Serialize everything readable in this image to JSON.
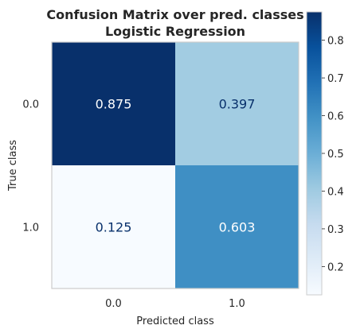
{
  "chart_data": {
    "type": "heatmap",
    "title": "Confusion Matrix over pred. classes",
    "subtitle": "Logistic Regression",
    "xlabel": "Predicted class",
    "ylabel": "True class",
    "x_categories": [
      "0.0",
      "1.0"
    ],
    "y_categories": [
      "0.0",
      "1.0"
    ],
    "values": [
      [
        0.875,
        0.397
      ],
      [
        0.125,
        0.603
      ]
    ],
    "value_labels": [
      [
        "0.875",
        "0.397"
      ],
      [
        "0.125",
        "0.603"
      ]
    ],
    "colormap": "Blues",
    "colorbar": {
      "range": [
        0.125,
        0.875
      ],
      "ticks": [
        0.2,
        0.3,
        0.4,
        0.5,
        0.6,
        0.7,
        0.8
      ],
      "tick_labels": [
        "0.2",
        "0.3",
        "0.4",
        "0.5",
        "0.6",
        "0.7",
        "0.8"
      ]
    },
    "grid": false
  }
}
